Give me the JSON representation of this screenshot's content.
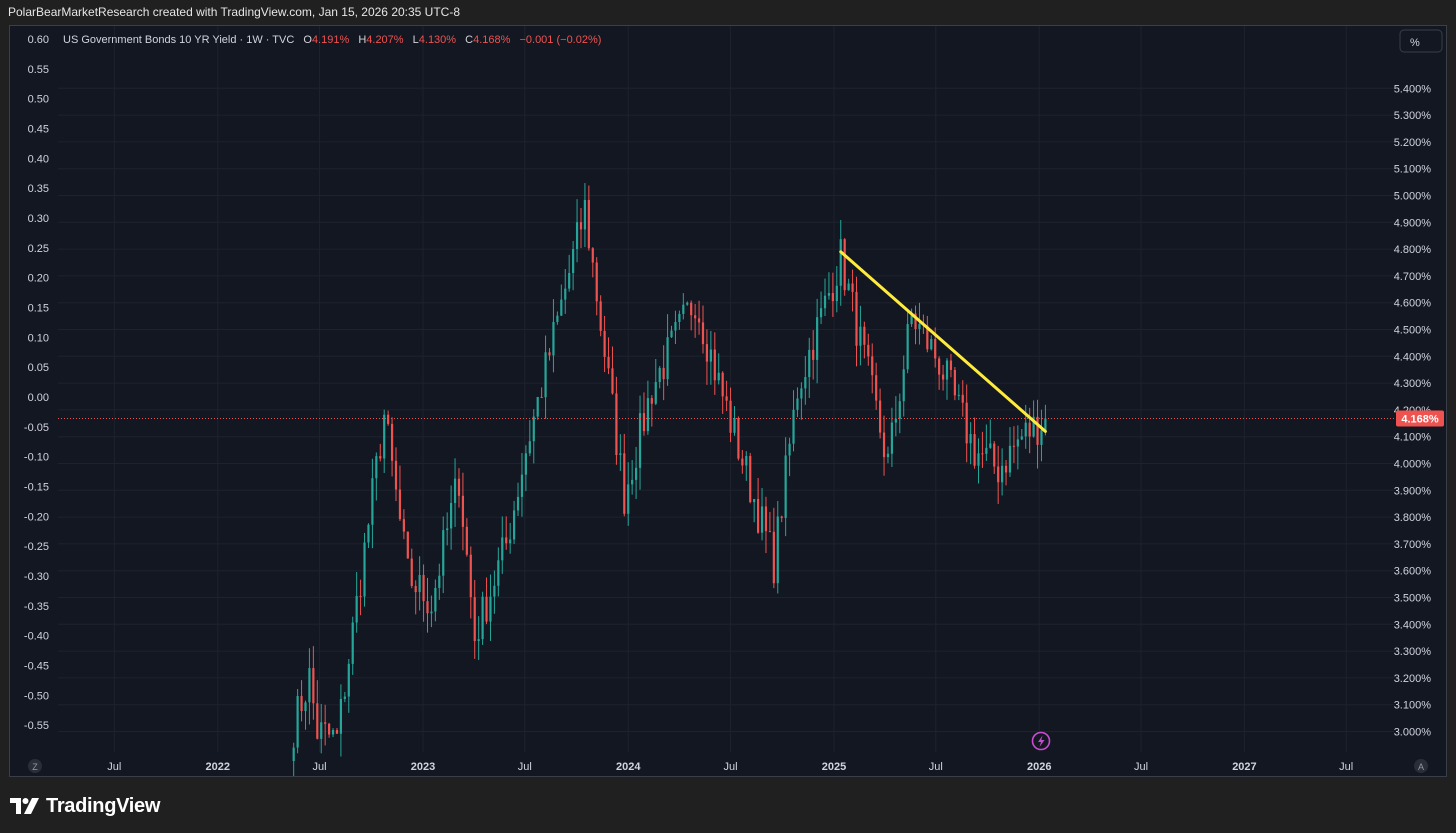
{
  "header": {
    "attribution": "PolarBearMarketResearch created with TradingView.com, Jan 15, 2026 20:35 UTC-8"
  },
  "legend": {
    "symbol": "US Government Bonds 10 YR Yield · 1W · TVC",
    "o_label": "O",
    "o_value": "4.191%",
    "h_label": "H",
    "h_value": "4.207%",
    "l_label": "L",
    "l_value": "4.130%",
    "c_label": "C",
    "c_value": "4.168%",
    "change": "−0.001 (−0.02%)"
  },
  "scale_button": "%",
  "price_tag": "4.168%",
  "corner_left": "Z",
  "corner_right": "A",
  "footer": {
    "brand": "TradingView"
  },
  "colors": {
    "up": "#26a69a",
    "down": "#ef5350",
    "trendline": "#ffeb3b",
    "background": "#131722",
    "price_line": "#ef5350",
    "event_icon": "#c84dd2"
  },
  "icons": [
    "tradingview-logo-icon",
    "lightning-event-icon"
  ],
  "chart_data": {
    "type": "candlestick",
    "title": "",
    "interval": "1W",
    "grid": true,
    "left_axis": {
      "ticks": [
        "0.60",
        "0.55",
        "0.50",
        "0.45",
        "0.40",
        "0.35",
        "0.30",
        "0.25",
        "0.20",
        "0.15",
        "0.10",
        "0.05",
        "0.00",
        "-0.05",
        "-0.10",
        "-0.15",
        "-0.20",
        "-0.25",
        "-0.30",
        "-0.35",
        "-0.40",
        "-0.45",
        "-0.50",
        "-0.55"
      ]
    },
    "right_axis": {
      "unit": "%",
      "ylim": [
        2.96,
        5.51
      ],
      "ticks": [
        "5.400%",
        "5.300%",
        "5.200%",
        "5.100%",
        "5.000%",
        "4.900%",
        "4.800%",
        "4.700%",
        "4.600%",
        "4.500%",
        "4.400%",
        "4.300%",
        "4.200%",
        "4.100%",
        "4.000%",
        "3.900%",
        "3.800%",
        "3.700%",
        "3.600%",
        "3.500%",
        "3.400%",
        "3.300%",
        "3.200%",
        "3.100%",
        "3.000%"
      ]
    },
    "x_axis": {
      "ticks": [
        {
          "label": "Jul",
          "date": "2021-07-01"
        },
        {
          "label": "2022",
          "date": "2022-01-01"
        },
        {
          "label": "Jul",
          "date": "2022-07-01"
        },
        {
          "label": "2023",
          "date": "2023-01-01"
        },
        {
          "label": "Jul",
          "date": "2023-07-01"
        },
        {
          "label": "2024",
          "date": "2024-01-01"
        },
        {
          "label": "Jul",
          "date": "2024-07-01"
        },
        {
          "label": "2025",
          "date": "2025-01-01"
        },
        {
          "label": "Jul",
          "date": "2025-07-01"
        },
        {
          "label": "2026",
          "date": "2026-01-01"
        },
        {
          "label": "Jul",
          "date": "2026-07-01"
        },
        {
          "label": "2027",
          "date": "2027-01-01"
        },
        {
          "label": "Jul",
          "date": "2027-07-01"
        }
      ]
    },
    "last_close": 4.168,
    "trendline": {
      "from": {
        "date": "2025-01-13",
        "value": 4.79
      },
      "to": {
        "date": "2026-01-12",
        "value": 4.12
      }
    },
    "series_anchors": [
      {
        "date": "2022-05-16",
        "value": 3.02
      },
      {
        "date": "2022-06-13",
        "value": 3.2
      },
      {
        "date": "2022-06-27",
        "value": 3.0
      },
      {
        "date": "2022-08-01",
        "value": 2.97
      },
      {
        "date": "2022-10-24",
        "value": 4.18
      },
      {
        "date": "2022-12-05",
        "value": 3.58
      },
      {
        "date": "2023-01-16",
        "value": 3.48
      },
      {
        "date": "2023-03-06",
        "value": 3.95
      },
      {
        "date": "2023-04-03",
        "value": 3.35
      },
      {
        "date": "2023-05-29",
        "value": 3.7
      },
      {
        "date": "2023-07-03",
        "value": 4.05
      },
      {
        "date": "2023-10-16",
        "value": 4.95
      },
      {
        "date": "2023-12-25",
        "value": 3.88
      },
      {
        "date": "2024-02-12",
        "value": 4.28
      },
      {
        "date": "2024-04-29",
        "value": 4.62
      },
      {
        "date": "2024-06-10",
        "value": 4.3
      },
      {
        "date": "2024-09-16",
        "value": 3.63
      },
      {
        "date": "2024-10-28",
        "value": 4.28
      },
      {
        "date": "2025-01-13",
        "value": 4.77
      },
      {
        "date": "2025-04-07",
        "value": 4.0
      },
      {
        "date": "2025-05-19",
        "value": 4.55
      },
      {
        "date": "2025-07-07",
        "value": 4.38
      },
      {
        "date": "2025-09-08",
        "value": 4.05
      },
      {
        "date": "2025-10-20",
        "value": 3.98
      },
      {
        "date": "2025-12-01",
        "value": 4.1
      },
      {
        "date": "2026-01-12",
        "value": 4.168
      }
    ]
  }
}
